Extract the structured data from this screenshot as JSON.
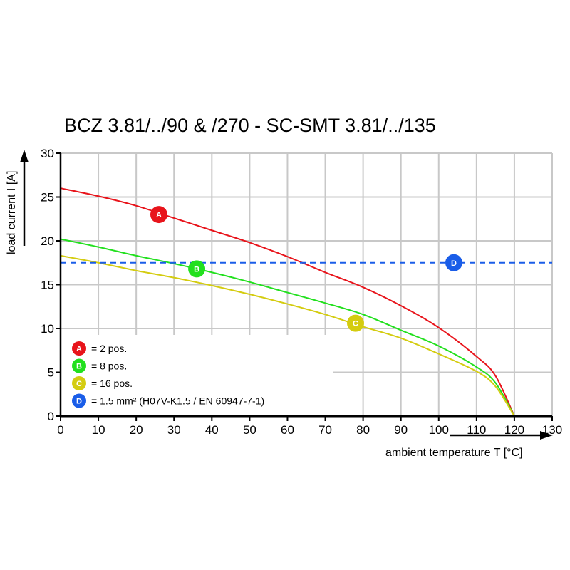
{
  "chart_data": {
    "type": "line",
    "title": "BCZ 3.81/../90 & /270 - SC-SMT 3.81/../135",
    "xlabel": "ambient temperature T [°C]",
    "ylabel": "load current I [A]",
    "xlim": [
      0,
      130
    ],
    "ylim": [
      0,
      30
    ],
    "xticks": [
      "0",
      "10",
      "20",
      "30",
      "40",
      "50",
      "60",
      "70",
      "80",
      "90",
      "100",
      "110",
      "120",
      "130"
    ],
    "yticks": [
      "0",
      "5",
      "10",
      "15",
      "20",
      "25",
      "30"
    ],
    "grid": true,
    "legend_placement": "bottom-left",
    "series": [
      {
        "name": "A",
        "legend": "= 2 pos.",
        "color": "#e8141b",
        "style": "solid",
        "x": [
          0,
          10,
          20,
          30,
          40,
          50,
          60,
          70,
          80,
          90,
          100,
          110,
          115,
          120
        ],
        "y": [
          26,
          25.1,
          24,
          22.6,
          21.2,
          19.8,
          18.2,
          16.4,
          14.7,
          12.6,
          10.1,
          6.8,
          4.6,
          0
        ],
        "marker": {
          "x": 26,
          "y": 23
        }
      },
      {
        "name": "B",
        "legend": "= 8 pos.",
        "color": "#22e01e",
        "style": "solid",
        "x": [
          0,
          10,
          20,
          30,
          40,
          50,
          60,
          70,
          80,
          90,
          100,
          110,
          115,
          120
        ],
        "y": [
          20.2,
          19.3,
          18.3,
          17.4,
          16.4,
          15.3,
          14.1,
          12.9,
          11.6,
          9.8,
          8.0,
          5.6,
          3.8,
          0
        ],
        "marker": {
          "x": 36,
          "y": 16.8
        }
      },
      {
        "name": "C",
        "legend": "= 16 pos.",
        "color": "#d4cc10",
        "style": "solid",
        "x": [
          0,
          10,
          20,
          30,
          40,
          50,
          60,
          70,
          80,
          90,
          100,
          110,
          115,
          120
        ],
        "y": [
          18.3,
          17.5,
          16.6,
          15.8,
          14.9,
          13.9,
          12.8,
          11.6,
          10.2,
          8.9,
          7.1,
          5.1,
          3.4,
          0
        ],
        "marker": {
          "x": 78,
          "y": 10.6
        }
      },
      {
        "name": "D",
        "legend": "= 1.5 mm² (H07V-K1.5 / EN 60947-7-1)",
        "color": "#1a5de8",
        "style": "dashed",
        "x": [
          0,
          130
        ],
        "y": [
          17.5,
          17.5
        ],
        "marker": {
          "x": 104,
          "y": 17.5
        }
      }
    ]
  }
}
